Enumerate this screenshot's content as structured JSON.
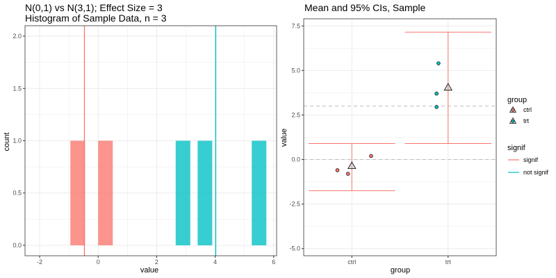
{
  "chart_data": [
    {
      "type": "bar",
      "title": "N(0,1) vs N(3,1); Effect Size = 3",
      "subtitle": "Histogram of Sample Data, n = 3",
      "xlabel": "value",
      "ylabel": "count",
      "xlim": [
        -2.5,
        6.1
      ],
      "ylim": [
        -0.1,
        2.1
      ],
      "x_ticks": [
        "-2",
        "0",
        "2",
        "4",
        "6"
      ],
      "y_ticks": [
        "0.0",
        "0.5",
        "1.0",
        "1.5",
        "2.0"
      ],
      "bin_width": 0.5,
      "grid": true,
      "series": [
        {
          "group": "ctrl",
          "color": "#F8766D",
          "bins": [
            {
              "center": -0.7,
              "count": 1
            },
            {
              "center": 0.25,
              "count": 1
            }
          ]
        },
        {
          "group": "trt",
          "color": "#00BFC4",
          "bins": [
            {
              "center": 2.9,
              "count": 1
            },
            {
              "center": 3.65,
              "count": 1
            },
            {
              "center": 5.5,
              "count": 1
            }
          ]
        }
      ],
      "vlines": [
        {
          "group": "ctrl",
          "x": -0.47,
          "color": "#F8766D"
        },
        {
          "group": "trt",
          "x": 4.02,
          "color": "#00BFC4"
        }
      ]
    },
    {
      "type": "scatter",
      "title": "Mean and 95% CIs, Sample",
      "xlabel": "group",
      "ylabel": "value",
      "categories": [
        "ctrl",
        "trt"
      ],
      "ylim": [
        -5.4,
        7.9
      ],
      "y_ticks": [
        "-5.0",
        "-2.5",
        "0.0",
        "2.5",
        "5.0",
        "7.5"
      ],
      "grid": true,
      "points": [
        {
          "group": "ctrl",
          "color": "#F8766D",
          "jitter": -0.15,
          "y": -0.6
        },
        {
          "group": "ctrl",
          "color": "#F8766D",
          "jitter": -0.04,
          "y": -0.8
        },
        {
          "group": "ctrl",
          "color": "#F8766D",
          "jitter": 0.2,
          "y": 0.2
        },
        {
          "group": "trt",
          "color": "#00BFC4",
          "jitter": -0.12,
          "y": 2.95
        },
        {
          "group": "trt",
          "color": "#00BFC4",
          "jitter": -0.12,
          "y": 3.7
        },
        {
          "group": "trt",
          "color": "#00BFC4",
          "jitter": -0.1,
          "y": 5.4
        }
      ],
      "means": [
        {
          "group": "ctrl",
          "mean": -0.35,
          "color": "#F8766D"
        },
        {
          "group": "trt",
          "mean": 4.05,
          "color": "#00BFC4"
        }
      ],
      "error_bars": [
        {
          "group": "ctrl",
          "low": -1.75,
          "high": 0.9,
          "signif": "signif",
          "color": "#F8766D"
        },
        {
          "group": "trt",
          "low": 0.9,
          "high": 7.15,
          "signif": "signif",
          "color": "#F8766D"
        }
      ],
      "hlines": [
        0,
        3
      ]
    }
  ],
  "legend": {
    "group_title": "group",
    "group_items": [
      {
        "label": "ctrl",
        "color": "#F8766D"
      },
      {
        "label": "trt",
        "color": "#00BFC4"
      }
    ],
    "signif_title": "signif",
    "signif_items": [
      {
        "label": "signif",
        "color": "#F8766D"
      },
      {
        "label": "not signif",
        "color": "#00BFC4"
      }
    ]
  }
}
